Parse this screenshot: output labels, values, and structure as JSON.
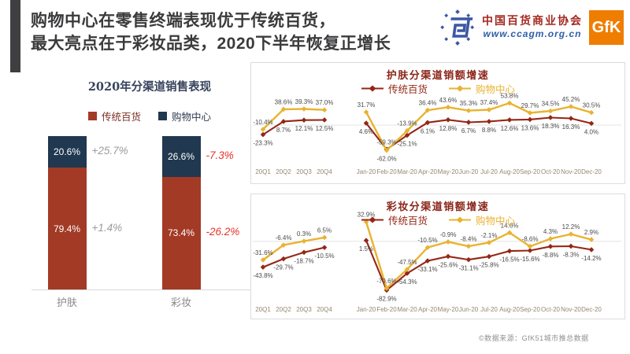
{
  "slide": {
    "title_line1": "购物中心在零售终端表现优于传统百货，",
    "title_line2": "最大亮点在于彩妆品类，2020下半年恢复正增长",
    "footer": "©数据来源：GfK51城市推总数据"
  },
  "header_logos": {
    "association_name": "中国百货商业协会",
    "association_url": "www.ccagm.org.cn",
    "gfk_label": "GfK"
  },
  "colors": {
    "traditional_red": "#942716",
    "mall_gold": "#e8b331",
    "mall_navy": "#203850",
    "bar_red": "#a23a26",
    "negative_red": "#e8322b",
    "positive_gray": "#9c9c9c",
    "gfk_orange": "#ef7d00",
    "association_blue": "#3c57a6"
  },
  "chart_data": [
    {
      "id": "channel_sales",
      "type": "bar",
      "stacked": true,
      "unit": "%",
      "title": "2020年分渠道销售表现",
      "categories": [
        "护肤",
        "彩妆"
      ],
      "series": [
        {
          "name": "传统百货",
          "color": "#a23a26",
          "values": [
            79.4,
            73.4
          ],
          "growth_labels": [
            "+1.4%",
            "-26.2%"
          ]
        },
        {
          "name": "购物中心",
          "color": "#203850",
          "values": [
            20.6,
            26.6
          ],
          "growth_labels": [
            "+25.7%",
            "-7.3%"
          ]
        }
      ],
      "ylim": [
        0,
        100
      ],
      "grid": false,
      "legend_position": "top"
    },
    {
      "id": "skincare_growth",
      "type": "line",
      "unit": "%",
      "title": "护肤分渠道销额增速",
      "categories": [
        "20Q1",
        "20Q2",
        "20Q3",
        "20Q4",
        "Jan-20",
        "Feb-20",
        "Mar-20",
        "Apr-20",
        "May-20",
        "Jun-20",
        "Jul-20",
        "Aug-20",
        "Sep-20",
        "Oct-20",
        "Nov-20",
        "Dec-20"
      ],
      "series": [
        {
          "name": "传统百货",
          "color": "#942716",
          "values": [
            -23.3,
            8.7,
            12.1,
            12.5,
            4.6,
            -59.3,
            -25.1,
            6.1,
            12.8,
            6.7,
            8.8,
            12.6,
            13.6,
            18.3,
            16.3,
            4.0
          ]
        },
        {
          "name": "购物中心",
          "color": "#e8b331",
          "values": [
            -10.4,
            38.6,
            39.3,
            37.0,
            31.7,
            -62.0,
            -13.9,
            36.4,
            43.6,
            35.3,
            37.4,
            53.8,
            29.7,
            34.5,
            45.2,
            30.5
          ]
        }
      ],
      "ylim": [
        -79,
        75
      ],
      "grid": "zero-line-only",
      "legend_position": "top"
    },
    {
      "id": "makeup_growth",
      "type": "line",
      "unit": "%",
      "title": "彩妆分渠道销额增速",
      "categories": [
        "20Q1",
        "20Q2",
        "20Q3",
        "20Q4",
        "Jan-20",
        "Feb-20",
        "Mar-20",
        "Apr-20",
        "May-20",
        "Jun-20",
        "Jul-20",
        "Aug-20",
        "Sep-20",
        "Oct-20",
        "Nov-20",
        "Dec-20"
      ],
      "series": [
        {
          "name": "传统百货",
          "color": "#942716",
          "values": [
            -43.8,
            -29.7,
            -18.7,
            -10.5,
            1.5,
            -82.9,
            -54.3,
            -33.1,
            -25.6,
            -31.1,
            -25.8,
            -16.5,
            -15.6,
            -8.8,
            -8.3,
            -14.2
          ]
        },
        {
          "name": "购物中心",
          "color": "#e8b331",
          "values": [
            -31.6,
            -6.4,
            0.3,
            6.5,
            32.9,
            -79.6,
            -47.5,
            -10.5,
            -0.9,
            -8.4,
            -2.1,
            14.6,
            -8.6,
            4.3,
            12.2,
            2.9
          ]
        }
      ],
      "ylim": [
        -87,
        33
      ],
      "grid": "zero-line-only",
      "legend_position": "top"
    }
  ]
}
